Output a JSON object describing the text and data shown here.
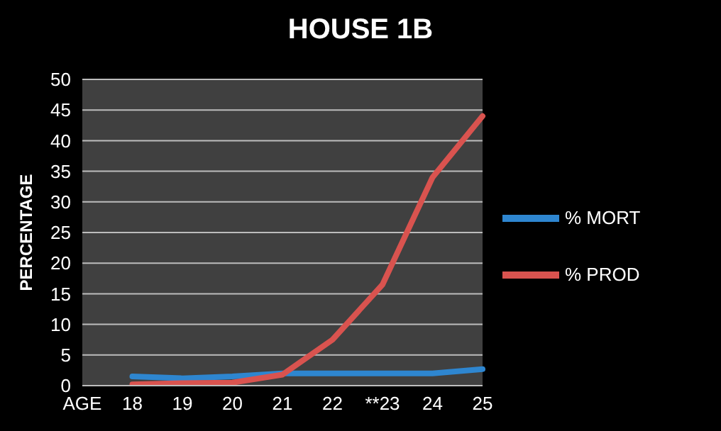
{
  "chart_data": {
    "type": "line",
    "title": "HOUSE 1B",
    "ylabel": "PERCENTAGE",
    "categories": [
      "AGE",
      "18",
      "19",
      "20",
      "21",
      "22",
      "**23",
      "24",
      "25"
    ],
    "series": [
      {
        "name": "% MORT",
        "color": "#2e86d0",
        "values": [
          null,
          1.5,
          1.2,
          1.5,
          2,
          2,
          2,
          2,
          2.7
        ]
      },
      {
        "name": "% PROD",
        "color": "#d9534f",
        "values": [
          null,
          0.2,
          0.4,
          0.5,
          1.8,
          7.5,
          16.5,
          34,
          44
        ]
      }
    ],
    "ylim": [
      0,
      50
    ],
    "yticks": [
      0,
      5,
      10,
      15,
      20,
      25,
      30,
      35,
      40,
      45,
      50
    ],
    "grid": "y",
    "legend": "right",
    "marker": "none",
    "line_style": "solid"
  }
}
